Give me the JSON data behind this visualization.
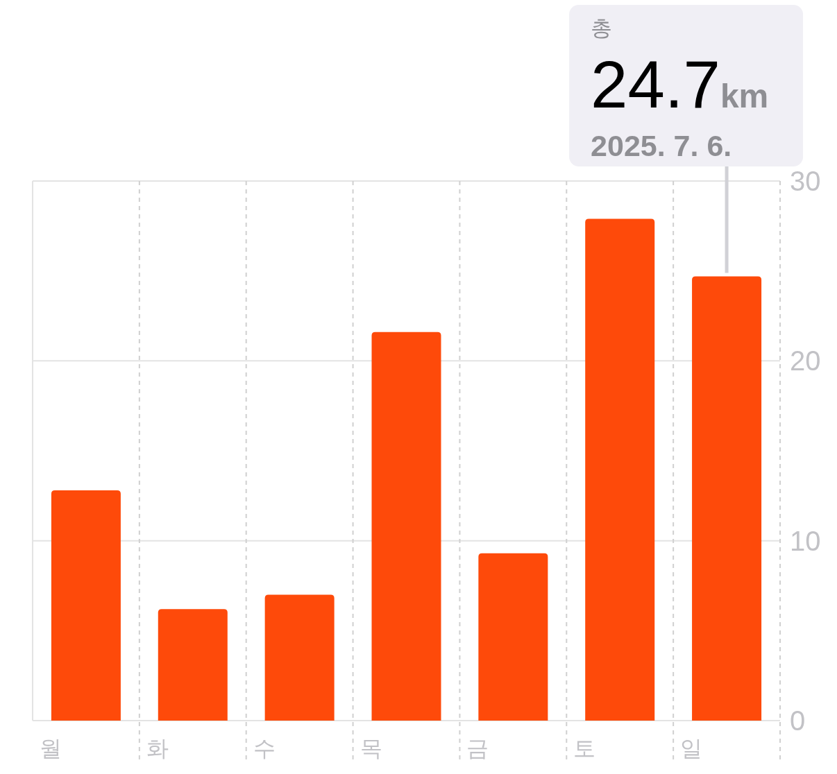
{
  "chart_data": {
    "type": "bar",
    "categories": [
      "월",
      "화",
      "수",
      "목",
      "금",
      "토",
      "일"
    ],
    "values": [
      12.8,
      6.2,
      7.0,
      21.6,
      9.3,
      27.9,
      24.7
    ],
    "color": "#fe4a0a",
    "ylim": [
      0,
      30
    ],
    "yticks": [
      0,
      10,
      20,
      30
    ],
    "grid": true,
    "annotations": [
      {
        "text": "총\n24.7km\n2025. 7. 6.",
        "x": "일",
        "y": 24.7
      }
    ]
  }
}
